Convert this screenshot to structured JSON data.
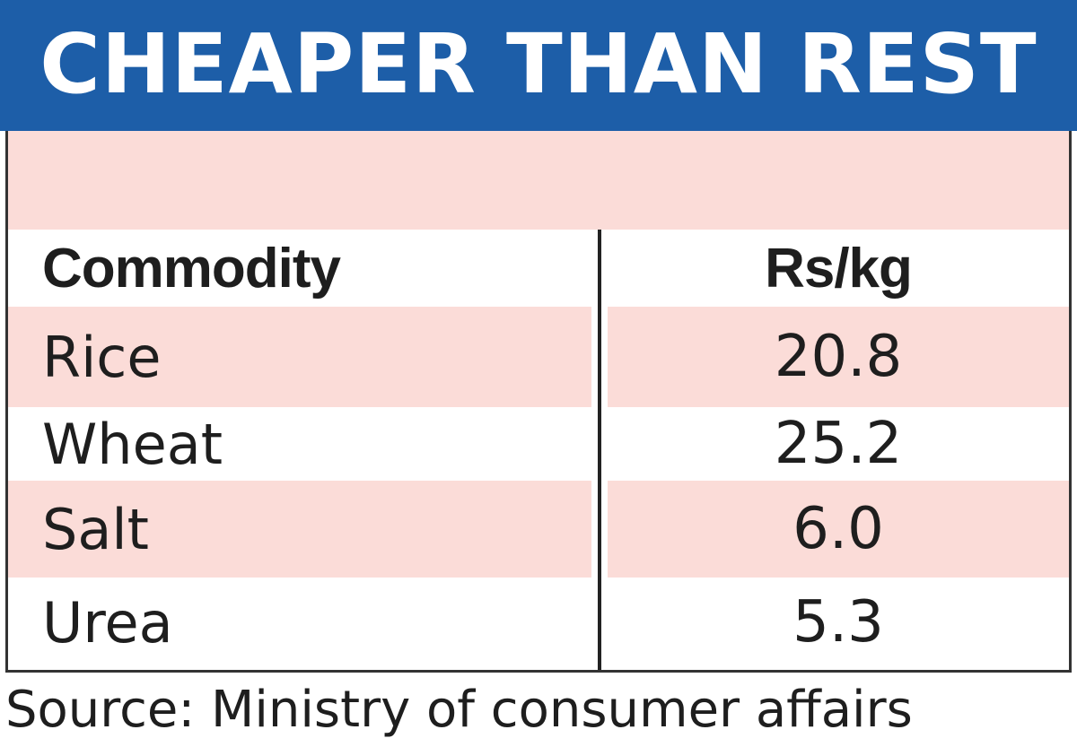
{
  "title": "CHEAPER THAN REST",
  "chart_data": {
    "type": "table",
    "columns": [
      "Commodity",
      "Rs/kg"
    ],
    "rows": [
      {
        "commodity": "Rice",
        "price": "20.8"
      },
      {
        "commodity": "Wheat",
        "price": "25.2"
      },
      {
        "commodity": "Salt",
        "price": "6.0"
      },
      {
        "commodity": "Urea",
        "price": "5.3"
      }
    ]
  },
  "source": "Source: Ministry of consumer affairs",
  "colors": {
    "banner": "#1d5ea8",
    "row_shade": "#fbdcd8",
    "text": "#1e1e1e"
  }
}
